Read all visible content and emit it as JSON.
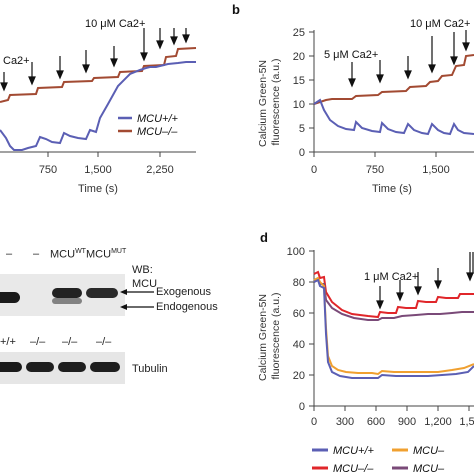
{
  "panels": {
    "a": {
      "letter": "",
      "annotations": [
        "10 μM Ca2+",
        "Ca2+"
      ],
      "xlabel": "Time (s)",
      "xticks": [
        "750",
        "1,500",
        "2,250"
      ],
      "legend": [
        {
          "name": "MCU+/+",
          "color": "#5b5fb4"
        },
        {
          "name": "MCU–/–",
          "color": "#a24a32"
        }
      ]
    },
    "b": {
      "letter": "b",
      "annotations": [
        "5 μM Ca2+",
        "10 μM Ca2+"
      ],
      "ylabel": [
        "Calcium Green-5N",
        "fluorescence (a.u.)"
      ],
      "xlabel": "Time (s)",
      "yticks": [
        "0",
        "5",
        "10",
        "15",
        "20",
        "25"
      ],
      "xticks": [
        "0",
        "750",
        "1,500"
      ]
    },
    "c": {
      "header_labels": [
        "–",
        "–",
        "MCU",
        "MCU"
      ],
      "header_sup": [
        "",
        "",
        "WT",
        "MUT"
      ],
      "wb_label": "WB:",
      "wb_protein": "MCU",
      "band_labels": [
        "Exogenous",
        "Endogenous"
      ],
      "genotypes": [
        "+/+",
        "–/–",
        "–/–",
        "–/–"
      ],
      "loading_control": "Tubulin"
    },
    "d": {
      "letter": "d",
      "annotation": "1 μM Ca2+",
      "ylabel": [
        "Calcium Green-5N",
        "fluorescence (a.u.)"
      ],
      "yticks": [
        "0",
        "20",
        "40",
        "60",
        "80",
        "100"
      ],
      "xticks": [
        "0",
        "300",
        "600",
        "900",
        "1,200",
        "1,5"
      ],
      "legend": [
        {
          "name": "MCU+/+",
          "color": "#5b5fb4"
        },
        {
          "name": "MCU–",
          "color": "#f0a030"
        },
        {
          "name": "MCU–/–",
          "color": "#e0262a"
        },
        {
          "name": "MCU–",
          "color": "#7a4a78"
        }
      ]
    }
  }
}
